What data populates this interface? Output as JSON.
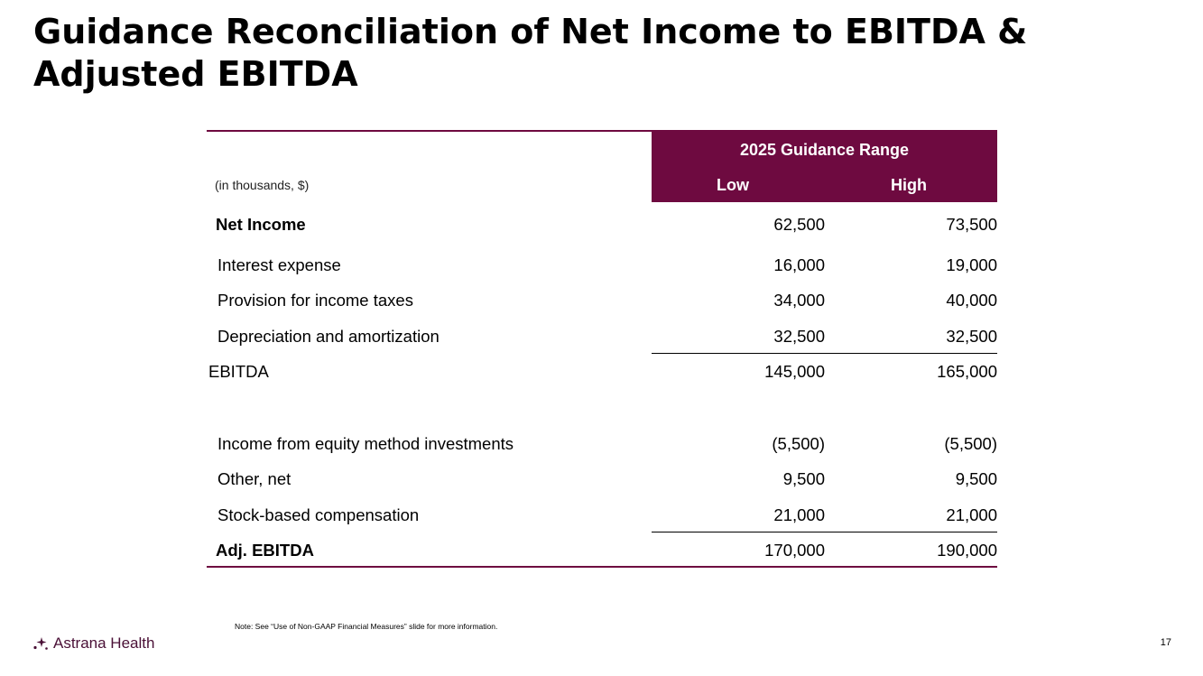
{
  "title": "Guidance Reconciliation of Net Income to EBITDA & Adjusted EBITDA",
  "table": {
    "range_header": "2025 Guidance Range",
    "units_label": "(in thousands, $)",
    "col_low": "Low",
    "col_high": "High",
    "rows": [
      {
        "label": "Net Income",
        "low": "62,500",
        "high": "73,500"
      },
      {
        "label": "Interest expense",
        "low": "16,000",
        "high": "19,000"
      },
      {
        "label": "Provision for income taxes",
        "low": "34,000",
        "high": "40,000"
      },
      {
        "label": "Depreciation and amortization",
        "low": "32,500",
        "high": "32,500"
      },
      {
        "label": "EBITDA",
        "low": "145,000",
        "high": "165,000"
      },
      {
        "label": "Income from equity method investments",
        "low": "(5,500)",
        "high": "(5,500)"
      },
      {
        "label": "Other, net",
        "low": "9,500",
        "high": "9,500"
      },
      {
        "label": "Stock-based compensation",
        "low": "21,000",
        "high": "21,000"
      },
      {
        "label": "Adj. EBITDA",
        "low": "170,000",
        "high": "190,000"
      }
    ]
  },
  "note": "Note: See “Use of Non-GAAP Financial Measures” slide for more information.",
  "footer": {
    "logo_text": "Astrana Health",
    "logo_icon": "astrana-sparkle-icon",
    "page_number": "17"
  },
  "colors": {
    "accent": "#6e0a40",
    "logo_text": "#4a1036"
  }
}
